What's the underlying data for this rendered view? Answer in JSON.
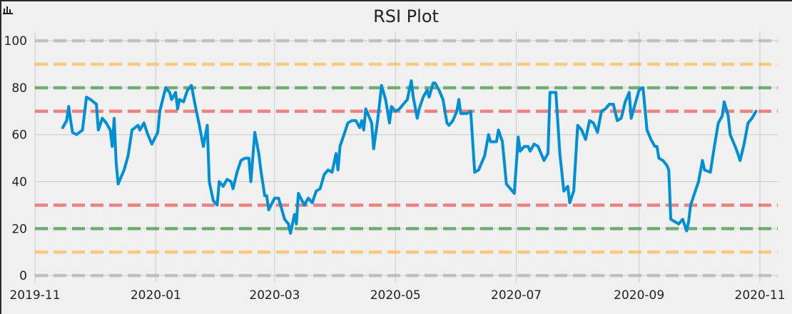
{
  "chart_data": {
    "type": "line",
    "title": "RSI Plot",
    "xlabel": "",
    "ylabel": "",
    "xlim": [
      "2019-11-01",
      "2020-11-10"
    ],
    "ylim": [
      -3,
      104
    ],
    "grid": true,
    "x_ticks": [
      "2019-11",
      "2020-01",
      "2020-03",
      "2020-05",
      "2020-07",
      "2020-09",
      "2020-11"
    ],
    "y_ticks": [
      0,
      20,
      40,
      60,
      80,
      100
    ],
    "series": [
      {
        "color": "#008fd5",
        "points": [
          [
            "2019-11-15",
            63
          ],
          [
            "2019-11-17",
            66
          ],
          [
            "2019-11-18",
            72
          ],
          [
            "2019-11-19",
            66
          ],
          [
            "2019-11-20",
            61
          ],
          [
            "2019-11-22",
            60
          ],
          [
            "2019-11-25",
            62
          ],
          [
            "2019-11-27",
            76
          ],
          [
            "2019-11-29",
            75
          ],
          [
            "2019-12-02",
            73
          ],
          [
            "2019-12-03",
            62
          ],
          [
            "2019-12-05",
            67
          ],
          [
            "2019-12-07",
            65
          ],
          [
            "2019-12-09",
            62
          ],
          [
            "2019-12-10",
            55
          ],
          [
            "2019-12-11",
            67
          ],
          [
            "2019-12-12",
            48
          ],
          [
            "2019-12-13",
            39
          ],
          [
            "2019-12-16",
            45
          ],
          [
            "2019-12-18",
            51
          ],
          [
            "2019-12-20",
            62
          ],
          [
            "2019-12-23",
            64
          ],
          [
            "2019-12-24",
            62
          ],
          [
            "2019-12-26",
            65
          ],
          [
            "2019-12-28",
            60
          ],
          [
            "2019-12-30",
            56
          ],
          [
            "2020-01-02",
            61
          ],
          [
            "2020-01-03",
            70
          ],
          [
            "2020-01-06",
            80
          ],
          [
            "2020-01-08",
            78
          ],
          [
            "2020-01-09",
            75
          ],
          [
            "2020-01-11",
            78
          ],
          [
            "2020-01-12",
            71
          ],
          [
            "2020-01-13",
            75
          ],
          [
            "2020-01-15",
            74
          ],
          [
            "2020-01-17",
            79
          ],
          [
            "2020-01-19",
            81
          ],
          [
            "2020-01-21",
            72
          ],
          [
            "2020-01-23",
            64
          ],
          [
            "2020-01-25",
            55
          ],
          [
            "2020-01-27",
            64
          ],
          [
            "2020-01-28",
            40
          ],
          [
            "2020-01-30",
            32
          ],
          [
            "2020-02-01",
            30
          ],
          [
            "2020-02-02",
            40
          ],
          [
            "2020-02-04",
            38
          ],
          [
            "2020-02-06",
            41
          ],
          [
            "2020-02-08",
            40
          ],
          [
            "2020-02-09",
            37
          ],
          [
            "2020-02-11",
            44
          ],
          [
            "2020-02-13",
            49
          ],
          [
            "2020-02-15",
            50
          ],
          [
            "2020-02-17",
            50
          ],
          [
            "2020-02-18",
            40
          ],
          [
            "2020-02-20",
            61
          ],
          [
            "2020-02-22",
            52
          ],
          [
            "2020-02-23",
            45
          ],
          [
            "2020-02-25",
            34
          ],
          [
            "2020-02-26",
            34
          ],
          [
            "2020-02-27",
            28
          ],
          [
            "2020-03-01",
            33
          ],
          [
            "2020-03-03",
            33
          ],
          [
            "2020-03-04",
            30
          ],
          [
            "2020-03-06",
            24
          ],
          [
            "2020-03-08",
            22
          ],
          [
            "2020-03-09",
            18
          ],
          [
            "2020-03-11",
            26
          ],
          [
            "2020-03-12",
            22
          ],
          [
            "2020-03-13",
            35
          ],
          [
            "2020-03-16",
            30
          ],
          [
            "2020-03-18",
            33
          ],
          [
            "2020-03-20",
            31
          ],
          [
            "2020-03-22",
            36
          ],
          [
            "2020-03-24",
            37
          ],
          [
            "2020-03-26",
            43
          ],
          [
            "2020-03-28",
            45
          ],
          [
            "2020-03-30",
            44
          ],
          [
            "2020-04-01",
            52
          ],
          [
            "2020-04-02",
            45
          ],
          [
            "2020-04-03",
            55
          ],
          [
            "2020-04-05",
            60
          ],
          [
            "2020-04-07",
            65
          ],
          [
            "2020-04-09",
            66
          ],
          [
            "2020-04-11",
            66
          ],
          [
            "2020-04-13",
            63
          ],
          [
            "2020-04-14",
            66
          ],
          [
            "2020-04-15",
            62
          ],
          [
            "2020-04-16",
            71
          ],
          [
            "2020-04-19",
            65
          ],
          [
            "2020-04-20",
            54
          ],
          [
            "2020-04-22",
            66
          ],
          [
            "2020-04-24",
            81
          ],
          [
            "2020-04-26",
            75
          ],
          [
            "2020-04-28",
            65
          ],
          [
            "2020-04-29",
            72
          ],
          [
            "2020-05-01",
            70
          ],
          [
            "2020-05-03",
            71
          ],
          [
            "2020-05-05",
            73
          ],
          [
            "2020-05-07",
            75
          ],
          [
            "2020-05-09",
            83
          ],
          [
            "2020-05-10",
            76
          ],
          [
            "2020-05-12",
            67
          ],
          [
            "2020-05-13",
            71
          ],
          [
            "2020-05-15",
            76
          ],
          [
            "2020-05-17",
            79
          ],
          [
            "2020-05-18",
            76
          ],
          [
            "2020-05-20",
            82
          ],
          [
            "2020-05-21",
            82
          ],
          [
            "2020-05-23",
            79
          ],
          [
            "2020-05-25",
            75
          ],
          [
            "2020-05-27",
            65
          ],
          [
            "2020-05-28",
            64
          ],
          [
            "2020-05-30",
            66
          ],
          [
            "2020-06-01",
            70
          ],
          [
            "2020-06-02",
            75
          ],
          [
            "2020-06-03",
            69
          ],
          [
            "2020-06-06",
            69
          ],
          [
            "2020-06-08",
            70
          ],
          [
            "2020-06-10",
            44
          ],
          [
            "2020-06-12",
            45
          ],
          [
            "2020-06-15",
            51
          ],
          [
            "2020-06-17",
            60
          ],
          [
            "2020-06-18",
            57
          ],
          [
            "2020-06-21",
            57
          ],
          [
            "2020-06-22",
            62
          ],
          [
            "2020-06-24",
            57
          ],
          [
            "2020-06-26",
            39
          ],
          [
            "2020-06-28",
            37
          ],
          [
            "2020-06-30",
            35
          ],
          [
            "2020-07-02",
            59
          ],
          [
            "2020-07-03",
            53
          ],
          [
            "2020-07-05",
            55
          ],
          [
            "2020-07-07",
            55
          ],
          [
            "2020-07-08",
            53
          ],
          [
            "2020-07-10",
            56
          ],
          [
            "2020-07-12",
            55
          ],
          [
            "2020-07-15",
            49
          ],
          [
            "2020-07-17",
            52
          ],
          [
            "2020-07-18",
            78
          ],
          [
            "2020-07-21",
            78
          ],
          [
            "2020-07-23",
            52
          ],
          [
            "2020-07-25",
            36
          ],
          [
            "2020-07-27",
            38
          ],
          [
            "2020-07-28",
            31
          ],
          [
            "2020-07-30",
            36
          ],
          [
            "2020-08-01",
            64
          ],
          [
            "2020-08-03",
            62
          ],
          [
            "2020-08-05",
            58
          ],
          [
            "2020-08-07",
            66
          ],
          [
            "2020-08-09",
            65
          ],
          [
            "2020-08-11",
            61
          ],
          [
            "2020-08-13",
            70
          ],
          [
            "2020-08-15",
            71
          ],
          [
            "2020-08-17",
            73
          ],
          [
            "2020-08-19",
            73
          ],
          [
            "2020-08-21",
            66
          ],
          [
            "2020-08-23",
            67
          ],
          [
            "2020-08-25",
            74
          ],
          [
            "2020-08-27",
            78
          ],
          [
            "2020-08-28",
            67
          ],
          [
            "2020-08-30",
            73
          ],
          [
            "2020-09-01",
            79
          ],
          [
            "2020-09-03",
            80
          ],
          [
            "2020-09-05",
            62
          ],
          [
            "2020-09-07",
            58
          ],
          [
            "2020-09-09",
            55
          ],
          [
            "2020-09-10",
            55
          ],
          [
            "2020-09-11",
            50
          ],
          [
            "2020-09-13",
            49
          ],
          [
            "2020-09-15",
            47
          ],
          [
            "2020-09-16",
            45
          ],
          [
            "2020-09-17",
            24
          ],
          [
            "2020-09-19",
            23
          ],
          [
            "2020-09-21",
            22
          ],
          [
            "2020-09-23",
            24
          ],
          [
            "2020-09-25",
            19
          ],
          [
            "2020-09-26",
            23
          ],
          [
            "2020-09-27",
            30
          ],
          [
            "2020-09-29",
            35
          ],
          [
            "2020-10-01",
            40
          ],
          [
            "2020-10-03",
            49
          ],
          [
            "2020-10-04",
            45
          ],
          [
            "2020-10-07",
            44
          ],
          [
            "2020-10-09",
            55
          ],
          [
            "2020-10-11",
            65
          ],
          [
            "2020-10-13",
            68
          ],
          [
            "2020-10-14",
            74
          ],
          [
            "2020-10-16",
            68
          ],
          [
            "2020-10-17",
            60
          ],
          [
            "2020-10-20",
            54
          ],
          [
            "2020-10-22",
            49
          ],
          [
            "2020-10-24",
            56
          ],
          [
            "2020-10-26",
            65
          ],
          [
            "2020-10-28",
            67
          ],
          [
            "2020-10-30",
            70
          ]
        ]
      }
    ],
    "reference_lines": [
      {
        "y": 100,
        "color": "#a9a9a9"
      },
      {
        "y": 90,
        "color": "#ffb13d"
      },
      {
        "y": 80,
        "color": "#2e8b2e"
      },
      {
        "y": 70,
        "color": "#f03c3c"
      },
      {
        "y": 30,
        "color": "#f03c3c"
      },
      {
        "y": 20,
        "color": "#2e8b2e"
      },
      {
        "y": 10,
        "color": "#ffb13d"
      },
      {
        "y": 0,
        "color": "#a9a9a9"
      }
    ]
  }
}
